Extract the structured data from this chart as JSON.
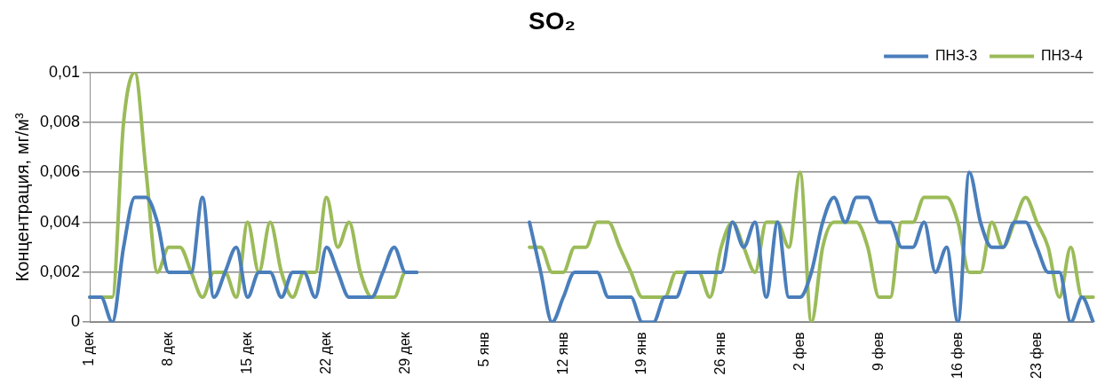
{
  "chart_data": {
    "type": "line",
    "title": "SO₂",
    "ylabel": "Концентрация, мг/м³",
    "categories": [
      "1 дек",
      null,
      null,
      null,
      null,
      null,
      null,
      "8 дек",
      null,
      null,
      null,
      null,
      null,
      null,
      "15 дек",
      null,
      null,
      null,
      null,
      null,
      null,
      "22 дек",
      null,
      null,
      null,
      null,
      null,
      null,
      "29 дек",
      null,
      null,
      null,
      null,
      null,
      null,
      "5 янв",
      null,
      null,
      null,
      null,
      null,
      null,
      "12 янв",
      null,
      null,
      null,
      null,
      null,
      null,
      "19 янв",
      null,
      null,
      null,
      null,
      null,
      null,
      "26 янв",
      null,
      null,
      null,
      null,
      null,
      null,
      "2 фев",
      null,
      null,
      null,
      null,
      null,
      null,
      "9 фев",
      null,
      null,
      null,
      null,
      null,
      null,
      "16 фев",
      null,
      null,
      null,
      null,
      null,
      null,
      "23 фев",
      null,
      null,
      null,
      null,
      null
    ],
    "series": [
      {
        "name": "ПНЗ-3",
        "color": "#4a7ebb",
        "values": [
          0.001,
          0.001,
          0,
          0.003,
          0.005,
          0.005,
          0.004,
          0.002,
          0.002,
          0.002,
          0.005,
          0.001,
          0.002,
          0.003,
          0.001,
          0.002,
          0.002,
          0.001,
          0.002,
          0.002,
          0.001,
          0.003,
          0.002,
          0.001,
          0.001,
          0.001,
          0.002,
          0.003,
          0.002,
          0.002,
          null,
          null,
          null,
          null,
          null,
          null,
          null,
          null,
          null,
          0.004,
          0.002,
          0,
          0.001,
          0.002,
          0.002,
          0.002,
          0.001,
          0.001,
          0.001,
          0,
          0,
          0.001,
          0.001,
          0.002,
          0.002,
          0.002,
          0.002,
          0.004,
          0.003,
          0.004,
          0.001,
          0.004,
          0.001,
          0.001,
          0.002,
          0.004,
          0.005,
          0.004,
          0.005,
          0.005,
          0.004,
          0.004,
          0.003,
          0.003,
          0.004,
          0.002,
          0.003,
          0,
          0.006,
          0.004,
          0.003,
          0.003,
          0.004,
          0.004,
          0.003,
          0.002,
          0.002,
          0,
          0.001,
          0
        ]
      },
      {
        "name": "ПНЗ-4",
        "color": "#9bbb59",
        "values": [
          0.001,
          0.001,
          0.001,
          0.008,
          0.01,
          0.006,
          0.002,
          0.003,
          0.003,
          0.002,
          0.001,
          0.002,
          0.002,
          0.001,
          0.004,
          0.002,
          0.004,
          0.002,
          0.001,
          0.002,
          0.002,
          0.005,
          0.003,
          0.004,
          0.002,
          0.001,
          0.001,
          0.001,
          0.002,
          0.002,
          null,
          null,
          null,
          null,
          null,
          null,
          null,
          null,
          null,
          0.003,
          0.003,
          0.002,
          0.002,
          0.003,
          0.003,
          0.004,
          0.004,
          0.003,
          0.002,
          0.001,
          0.001,
          0.001,
          0.002,
          0.002,
          0.002,
          0.001,
          0.003,
          0.004,
          0.003,
          0.002,
          0.004,
          0.004,
          0.003,
          0.006,
          0,
          0.003,
          0.004,
          0.004,
          0.004,
          0.003,
          0.001,
          0.001,
          0.004,
          0.004,
          0.005,
          0.005,
          0.005,
          0.004,
          0.002,
          0.002,
          0.004,
          0.003,
          0.004,
          0.005,
          0.004,
          0.003,
          0.001,
          0.003,
          0.001,
          0.001
        ]
      }
    ],
    "ylim": [
      0,
      0.01
    ],
    "yticks": [
      {
        "value": 0,
        "label": "0"
      },
      {
        "value": 0.002,
        "label": "0,002"
      },
      {
        "value": 0.004,
        "label": "0,004"
      },
      {
        "value": 0.006,
        "label": "0,006"
      },
      {
        "value": 0.008,
        "label": "0,008"
      },
      {
        "value": 0.01,
        "label": "0,01"
      }
    ],
    "grid": "y",
    "legend": "top right",
    "marker": "none",
    "line_style": "solid"
  }
}
